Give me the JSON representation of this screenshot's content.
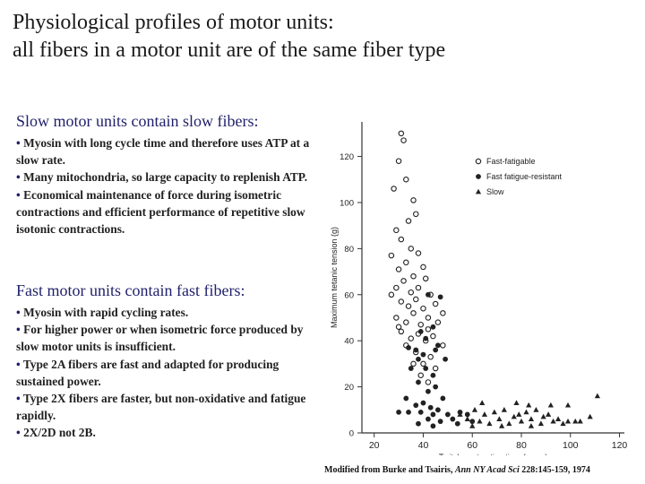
{
  "title": {
    "line1": "Physiological profiles of motor units:",
    "line2": "all fibers in a motor unit are of the same fiber type"
  },
  "slow_section": {
    "heading": "Slow motor units contain slow fibers:",
    "bullets": [
      "Myosin with long cycle time and therefore uses ATP at a slow rate.",
      "Many mitochondria, so large capacity to replenish ATP.",
      "Economical maintenance of force during isometric contractions and efficient performance of repetitive slow isotonic contractions."
    ]
  },
  "fast_section": {
    "heading": "Fast motor units contain fast fibers:",
    "bullets": [
      "Myosin with rapid cycling rates.",
      "For higher power or when isometric force produced by slow motor units is insufficient.",
      "Type 2A fibers are fast and adapted for producing sustained power.",
      "Type 2X fibers are faster, but non-oxidative and fatigue rapidly.",
      "2X/2D not 2B."
    ]
  },
  "caption": {
    "prefix": "Modified from Burke and Tsairis, ",
    "journal": "Ann NY Acad Sci",
    "suffix": " 228:145-159, 1974"
  },
  "chart_data": {
    "type": "scatter",
    "xlabel": "Twitch contraction time (msec)",
    "ylabel": "Maximum tetanic tension (g)",
    "xlim": [
      15,
      122
    ],
    "ylim": [
      0,
      135
    ],
    "xticks": [
      20,
      40,
      60,
      80,
      100,
      120
    ],
    "yticks": [
      0,
      20,
      40,
      60,
      80,
      100,
      120
    ],
    "legend_position": "top-right",
    "series": [
      {
        "name": "Fast-fatigable",
        "marker": "open-circle",
        "color": "#222222",
        "points": [
          [
            31,
            130
          ],
          [
            32,
            127
          ],
          [
            30,
            118
          ],
          [
            28,
            106
          ],
          [
            33,
            110
          ],
          [
            36,
            101
          ],
          [
            29,
            88
          ],
          [
            34,
            92
          ],
          [
            31,
            84
          ],
          [
            37,
            95
          ],
          [
            35,
            80
          ],
          [
            27,
            77
          ],
          [
            33,
            74
          ],
          [
            30,
            71
          ],
          [
            38,
            78
          ],
          [
            36,
            68
          ],
          [
            40,
            72
          ],
          [
            29,
            63
          ],
          [
            32,
            66
          ],
          [
            35,
            61
          ],
          [
            38,
            63
          ],
          [
            41,
            67
          ],
          [
            27,
            60
          ],
          [
            31,
            57
          ],
          [
            34,
            55
          ],
          [
            37,
            58
          ],
          [
            40,
            54
          ],
          [
            43,
            60
          ],
          [
            29,
            50
          ],
          [
            33,
            48
          ],
          [
            36,
            52
          ],
          [
            39,
            47
          ],
          [
            42,
            50
          ],
          [
            45,
            56
          ],
          [
            31,
            44
          ],
          [
            35,
            41
          ],
          [
            38,
            43
          ],
          [
            42,
            45
          ],
          [
            46,
            48
          ],
          [
            33,
            38
          ],
          [
            37,
            35
          ],
          [
            41,
            40
          ],
          [
            44,
            42
          ],
          [
            30,
            46
          ],
          [
            48,
            52
          ],
          [
            40,
            30
          ],
          [
            43,
            33
          ],
          [
            36,
            30
          ],
          [
            39,
            25
          ],
          [
            42,
            22
          ],
          [
            45,
            28
          ],
          [
            48,
            38
          ]
        ]
      },
      {
        "name": "Fast fatigue-resistant",
        "marker": "filled-circle",
        "color": "#222222",
        "points": [
          [
            42,
            60
          ],
          [
            47,
            59
          ],
          [
            44,
            46
          ],
          [
            39,
            44
          ],
          [
            41,
            41
          ],
          [
            46,
            38
          ],
          [
            34,
            37
          ],
          [
            37,
            36
          ],
          [
            40,
            34
          ],
          [
            38,
            32
          ],
          [
            45,
            36
          ],
          [
            49,
            32
          ],
          [
            41,
            28
          ],
          [
            35,
            28
          ],
          [
            44,
            25
          ],
          [
            38,
            22
          ],
          [
            42,
            18
          ],
          [
            45,
            20
          ],
          [
            48,
            15
          ],
          [
            33,
            15
          ],
          [
            37,
            12
          ],
          [
            40,
            13
          ],
          [
            43,
            11
          ],
          [
            46,
            10
          ],
          [
            30,
            9
          ],
          [
            34,
            9
          ],
          [
            39,
            9
          ],
          [
            44,
            8
          ],
          [
            50,
            8
          ],
          [
            55,
            9
          ],
          [
            58,
            8
          ],
          [
            52,
            6
          ],
          [
            47,
            5
          ],
          [
            42,
            6
          ],
          [
            38,
            4
          ],
          [
            44,
            3
          ],
          [
            54,
            4
          ],
          [
            60,
            5
          ]
        ]
      },
      {
        "name": "Slow",
        "marker": "filled-triangle",
        "color": "#222222",
        "points": [
          [
            55,
            8
          ],
          [
            58,
            6
          ],
          [
            61,
            10
          ],
          [
            63,
            5
          ],
          [
            65,
            8
          ],
          [
            67,
            4
          ],
          [
            69,
            9
          ],
          [
            71,
            6
          ],
          [
            73,
            10
          ],
          [
            75,
            4
          ],
          [
            77,
            7
          ],
          [
            79,
            8
          ],
          [
            80,
            5
          ],
          [
            82,
            9
          ],
          [
            84,
            6
          ],
          [
            86,
            10
          ],
          [
            88,
            4
          ],
          [
            89,
            7
          ],
          [
            91,
            8
          ],
          [
            93,
            5
          ],
          [
            95,
            6
          ],
          [
            97,
            4
          ],
          [
            99,
            12
          ],
          [
            102,
            5
          ],
          [
            104,
            5
          ],
          [
            108,
            7
          ],
          [
            99,
            5
          ],
          [
            64,
            13
          ],
          [
            78,
            13
          ],
          [
            84,
            3
          ],
          [
            72,
            3
          ],
          [
            60,
            3
          ],
          [
            111,
            16
          ],
          [
            83,
            12
          ],
          [
            92,
            12
          ]
        ]
      }
    ]
  }
}
